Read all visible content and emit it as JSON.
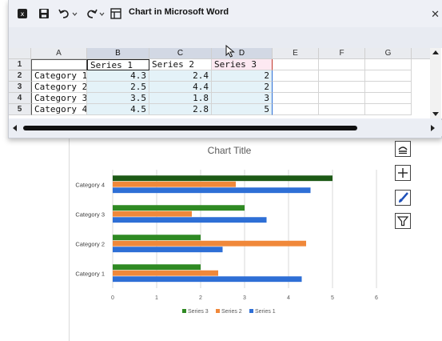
{
  "window": {
    "title": "Chart in Microsoft Word",
    "icons": [
      "excel-icon",
      "save-icon",
      "undo-icon",
      "redo-icon",
      "customize-icon"
    ]
  },
  "sheet": {
    "columns": [
      "A",
      "B",
      "C",
      "D",
      "E",
      "F",
      "G"
    ],
    "rows": [
      "1",
      "2",
      "3",
      "4",
      "5"
    ],
    "header_row": [
      "",
      "Series 1",
      "Series 2",
      "Series 3"
    ],
    "data_rows": [
      [
        "Category 1",
        "4.3",
        "2.4",
        "2"
      ],
      [
        "Category 2",
        "2.5",
        "4.4",
        "2"
      ],
      [
        "Category 3",
        "3.5",
        "1.8",
        "3"
      ],
      [
        "Category 4",
        "4.5",
        "2.8",
        "5"
      ]
    ]
  },
  "colors": {
    "series1": "#2e6fd6",
    "series2": "#f0883a",
    "series3_dark": "#1d5a16",
    "series3": "#2f8a23"
  },
  "chart_data": {
    "type": "bar",
    "orientation": "horizontal",
    "title": "Chart Title",
    "categories": [
      "Category 1",
      "Category 2",
      "Category 3",
      "Category 4"
    ],
    "series": [
      {
        "name": "Series 1",
        "values": [
          4.3,
          2.5,
          3.5,
          4.5
        ]
      },
      {
        "name": "Series 2",
        "values": [
          2.4,
          4.4,
          1.8,
          2.8
        ]
      },
      {
        "name": "Series 3",
        "values": [
          2,
          2,
          3,
          5
        ]
      }
    ],
    "xticks": [
      "0",
      "1",
      "2",
      "3",
      "4",
      "5",
      "6"
    ],
    "xlim": [
      0,
      6
    ],
    "legend": [
      "Series 3",
      "Series 2",
      "Series 1"
    ],
    "legend_position": "bottom",
    "grid": true
  },
  "side_tools": [
    "chart-layout-icon",
    "add-element-icon",
    "style-brush-icon",
    "filter-icon"
  ]
}
